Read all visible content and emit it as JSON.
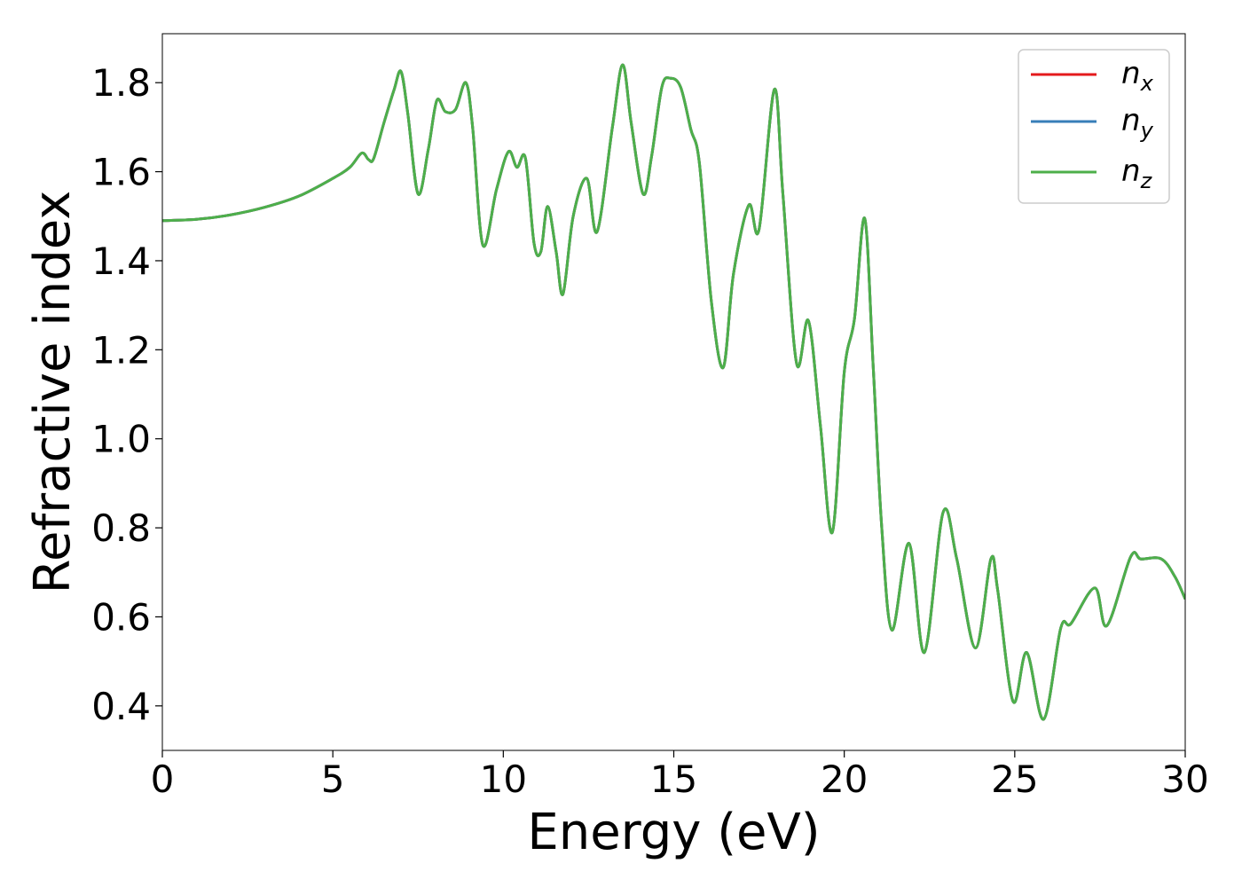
{
  "chart_data": {
    "type": "line",
    "title": "",
    "xlabel": "Energy (eV)",
    "ylabel": "Refractive index",
    "xlim": [
      0,
      30
    ],
    "ylim": [
      0.3,
      1.91
    ],
    "grid": false,
    "legend_position": "top-right",
    "x_ticks": [
      "0",
      "5",
      "10",
      "15",
      "20",
      "25",
      "30"
    ],
    "y_ticks": [
      "0.4",
      "0.6",
      "0.8",
      "1.0",
      "1.2",
      "1.4",
      "1.6",
      "1.8"
    ],
    "series": [
      {
        "name": "n",
        "subscript": "x",
        "color": "#e41a1c"
      },
      {
        "name": "n",
        "subscript": "y",
        "color": "#377eb8"
      },
      {
        "name": "n",
        "subscript": "z",
        "color": "#4daf4a"
      }
    ],
    "x": [
      0,
      1,
      2,
      3,
      4,
      5,
      5.5,
      5.85,
      6.05,
      6.2,
      6.5,
      6.8,
      7.0,
      7.2,
      7.5,
      7.8,
      8.05,
      8.3,
      8.6,
      8.9,
      9.1,
      9.4,
      9.8,
      10.15,
      10.4,
      10.65,
      10.9,
      11.1,
      11.3,
      11.55,
      11.75,
      12.05,
      12.45,
      12.75,
      13.2,
      13.5,
      13.75,
      14.1,
      14.35,
      14.65,
      14.9,
      15.2,
      15.5,
      15.75,
      16.1,
      16.45,
      16.75,
      17.2,
      17.5,
      17.95,
      18.2,
      18.6,
      18.95,
      19.3,
      19.65,
      20.0,
      20.3,
      20.6,
      20.85,
      21.1,
      21.4,
      21.9,
      22.35,
      22.9,
      23.3,
      23.85,
      24.3,
      24.5,
      24.95,
      25.35,
      25.85,
      26.35,
      26.65,
      27.35,
      27.7,
      28.4,
      28.7,
      29.3,
      29.7,
      30.0
    ],
    "values_note": "",
    "y": [
      1.49,
      1.493,
      1.503,
      1.52,
      1.545,
      1.585,
      1.61,
      1.642,
      1.627,
      1.63,
      1.71,
      1.785,
      1.825,
      1.73,
      1.55,
      1.65,
      1.76,
      1.735,
      1.74,
      1.8,
      1.7,
      1.435,
      1.56,
      1.645,
      1.61,
      1.63,
      1.44,
      1.42,
      1.522,
      1.42,
      1.325,
      1.5,
      1.585,
      1.465,
      1.7,
      1.84,
      1.71,
      1.55,
      1.635,
      1.79,
      1.81,
      1.79,
      1.695,
      1.62,
      1.31,
      1.16,
      1.37,
      1.525,
      1.47,
      1.785,
      1.55,
      1.17,
      1.265,
      1.03,
      0.79,
      1.15,
      1.27,
      1.495,
      1.16,
      0.8,
      0.57,
      0.765,
      0.52,
      0.835,
      0.73,
      0.53,
      0.73,
      0.66,
      0.41,
      0.52,
      0.37,
      0.575,
      0.585,
      0.665,
      0.58,
      0.735,
      0.73,
      0.73,
      0.69,
      0.64
    ]
  }
}
